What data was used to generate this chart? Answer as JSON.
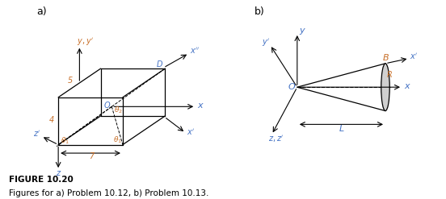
{
  "fig_width": 5.52,
  "fig_height": 2.47,
  "dpi": 100,
  "bg_color": "#ffffff",
  "blue": "#4472c4",
  "orange": "#c8702a",
  "black": "#000000",
  "title_bold": "FIGURE 10.20",
  "caption": "Figures for a) Problem 10.12, b) Problem 10.13.",
  "panel_a_label": "a)",
  "panel_b_label": "b)"
}
